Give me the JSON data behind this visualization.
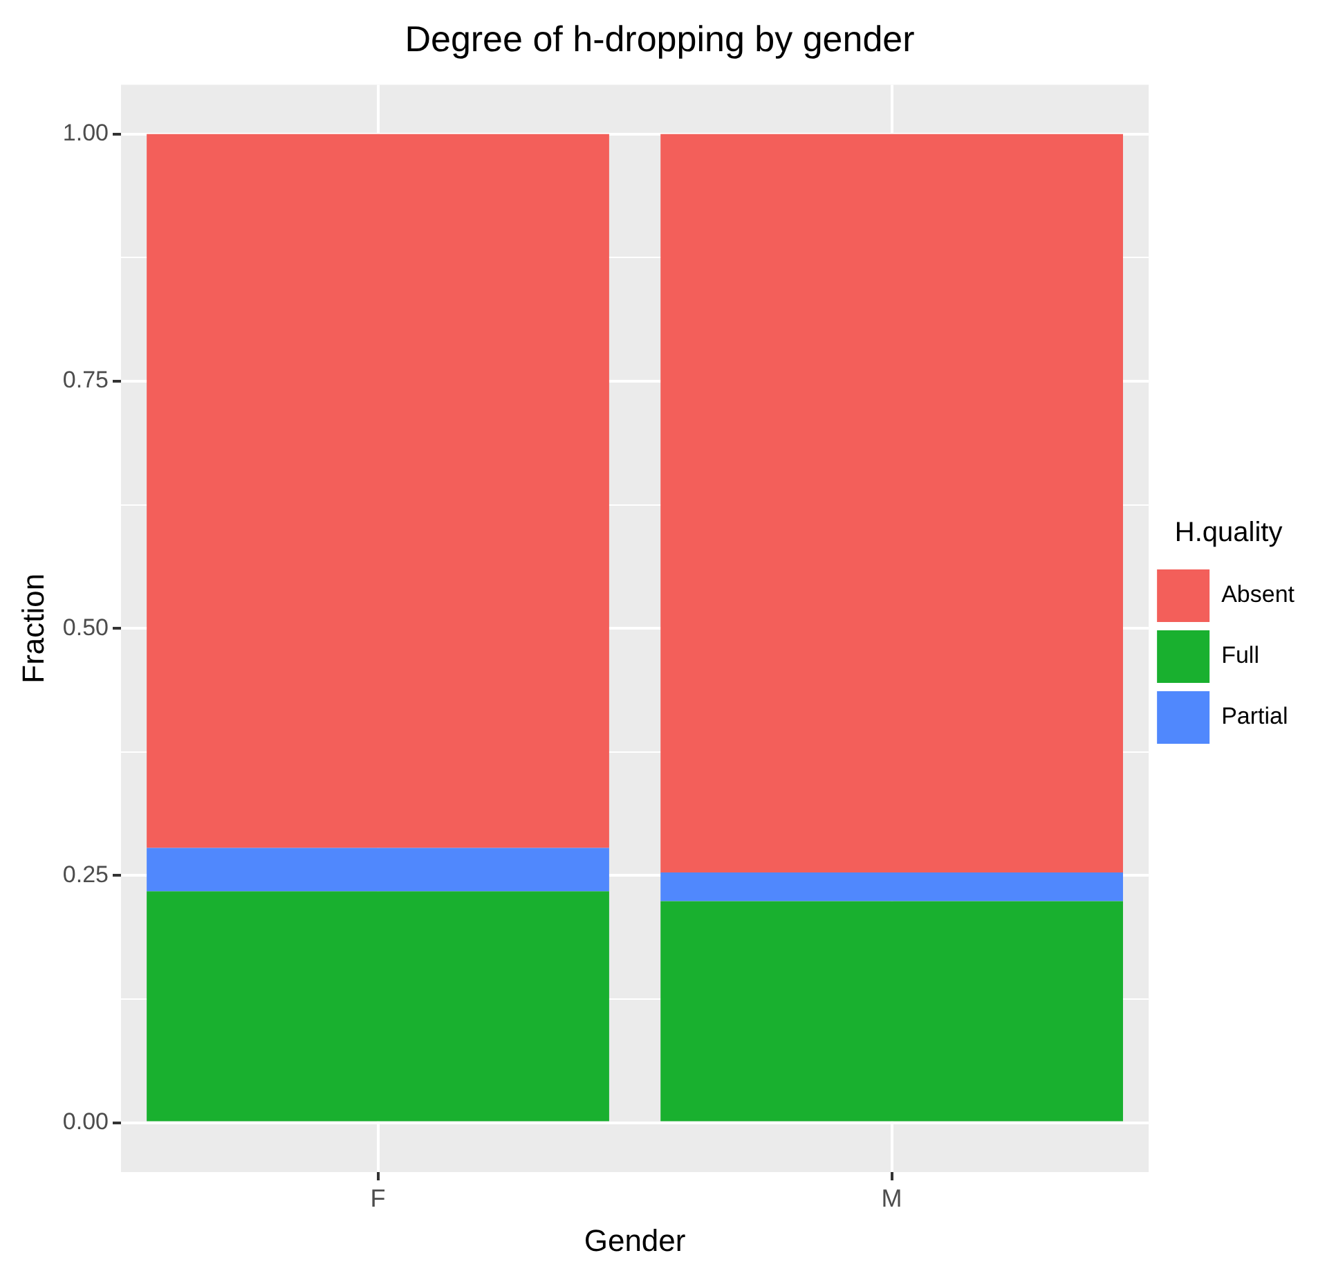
{
  "chart_data": {
    "type": "bar",
    "title": "Degree of h-dropping by gender",
    "xlabel": "Gender",
    "ylabel": "Fraction",
    "legend_title": "H.quality",
    "categories": [
      "F",
      "M"
    ],
    "stacked": true,
    "grid": true,
    "legend": "right",
    "ylim": [
      -0.05,
      1.05
    ],
    "yticks": [
      {
        "value": 0,
        "label": "0.00"
      },
      {
        "value": 0.125,
        "label": null
      },
      {
        "value": 0.25,
        "label": "0.25"
      },
      {
        "value": 0.375,
        "label": null
      },
      {
        "value": 0.5,
        "label": "0.50"
      },
      {
        "value": 0.625,
        "label": null
      },
      {
        "value": 0.75,
        "label": "0.75"
      },
      {
        "value": 0.875,
        "label": null
      },
      {
        "value": 1,
        "label": "1.00"
      }
    ],
    "series": [
      {
        "name": "Full",
        "color": "#19b02f",
        "values": [
          0.234,
          0.224
        ]
      },
      {
        "name": "Partial",
        "color": "#5088fd",
        "values": [
          0.044,
          0.029
        ]
      },
      {
        "name": "Absent",
        "color": "#f35f5a",
        "values": [
          0.722,
          0.747
        ]
      }
    ]
  }
}
